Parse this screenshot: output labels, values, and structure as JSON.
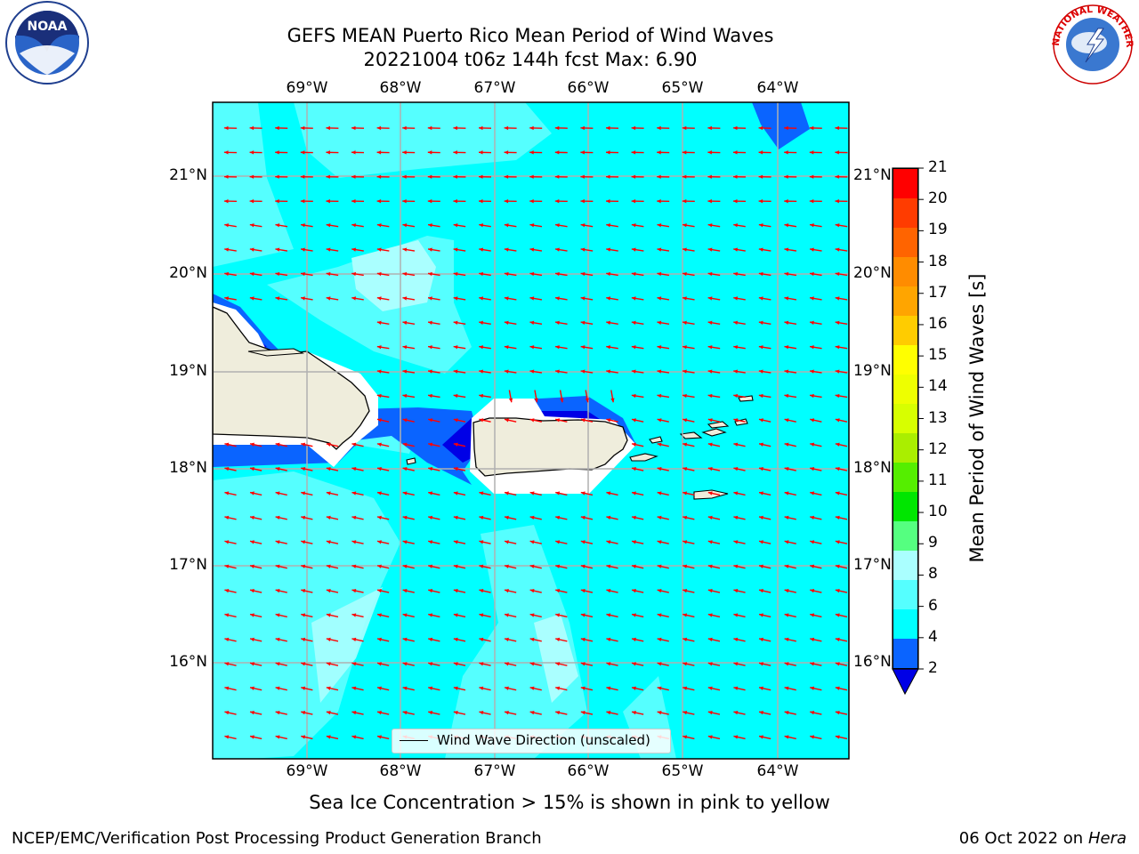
{
  "header": {
    "title_line1": "GEFS MEAN Puerto Rico Mean Period of Wind Waves",
    "title_line2": "20221004 t06z 144h fcst   Max: 6.90"
  },
  "logos": {
    "left": {
      "name": "noaa-logo",
      "text": "NOAA"
    },
    "right": {
      "name": "nws-logo",
      "text": "NATIONAL WEATHER SERVICE"
    }
  },
  "map": {
    "lon_ticks": [
      "69°W",
      "68°W",
      "67°W",
      "66°W",
      "65°W",
      "64°W"
    ],
    "lat_ticks": [
      "21°N",
      "20°N",
      "19°N",
      "18°N",
      "17°N",
      "16°N"
    ],
    "legend_label": "Wind Wave Direction (unscaled)",
    "land_color": "#efeddc",
    "ocean_color": "#00ffff",
    "arrow_color": "#ff0000"
  },
  "colorbar": {
    "title": "Mean Period of Wind Waves [s]",
    "tick_labels": [
      "2",
      "4",
      "6",
      "8",
      "9",
      "10",
      "11",
      "12",
      "13",
      "14",
      "15",
      "16",
      "17",
      "18",
      "19",
      "20",
      "21"
    ],
    "colors": [
      "#0a64ff",
      "#00ffff",
      "#55ffff",
      "#aaffff",
      "#55ff80",
      "#00e600",
      "#55ee00",
      "#aaee00",
      "#d7ff00",
      "#eeff00",
      "#ffff00",
      "#ffcc00",
      "#ffa500",
      "#ff8c00",
      "#ff6400",
      "#ff3c00",
      "#ff0000"
    ],
    "under_color": "#0000e6"
  },
  "footer": {
    "note": "Sea Ice Concentration > 15% is shown in pink to yellow",
    "left": "NCEP/EMC/Verification Post Processing Product Generation Branch",
    "date": "06 Oct 2022 on",
    "machine": "Hera"
  }
}
